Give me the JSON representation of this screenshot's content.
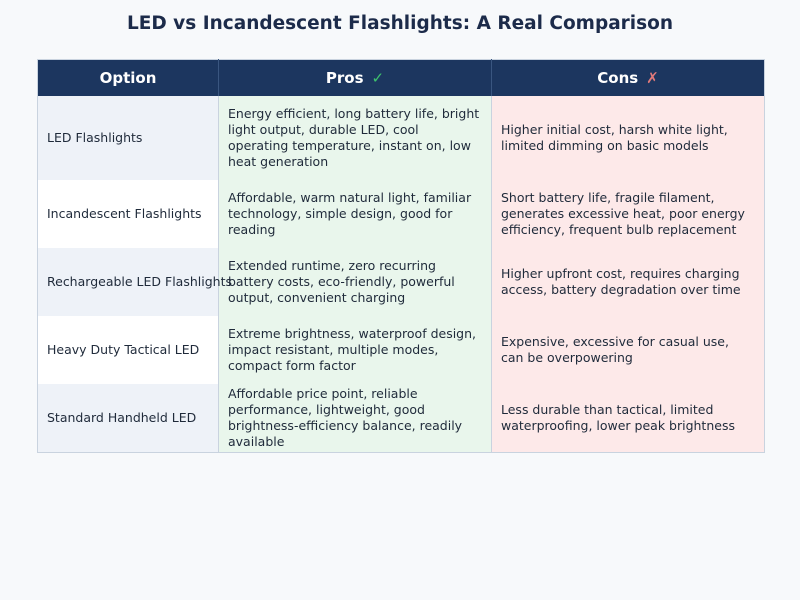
{
  "title": "LED vs Incandescent Flashlights: A Real Comparison",
  "headers": {
    "option": "Option",
    "pros": "Pros",
    "pros_icon": "✓",
    "cons": "Cons",
    "cons_icon": "✗"
  },
  "rows": [
    {
      "option": "LED Flashlights",
      "pros": "Energy efficient, long battery life, bright light output, durable LED, cool operating temperature, instant on, low heat generation",
      "cons": "Higher initial cost, harsh white light, limited dimming on basic models"
    },
    {
      "option": "Incandescent Flashlights",
      "pros": "Affordable, warm natural light, familiar technology, simple design, good for reading",
      "cons": "Short battery life, fragile filament, generates excessive heat, poor energy efficiency, frequent bulb replacement"
    },
    {
      "option": "Rechargeable LED Flashlights",
      "pros": "Extended runtime, zero recurring battery costs, eco-friendly, powerful output, convenient charging",
      "cons": "Higher upfront cost, requires charging access, battery degradation over time"
    },
    {
      "option": "Heavy Duty Tactical LED",
      "pros": "Extreme brightness, waterproof design, impact resistant, multiple modes, compact form factor",
      "cons": "Expensive, excessive for casual use, can be overpowering"
    },
    {
      "option": "Standard Handheld LED",
      "pros": "Affordable price point, reliable performance, lightweight, good brightness-efficiency balance, readily available",
      "cons": "Less durable than tactical, limited waterproofing, lower peak brightness"
    }
  ]
}
